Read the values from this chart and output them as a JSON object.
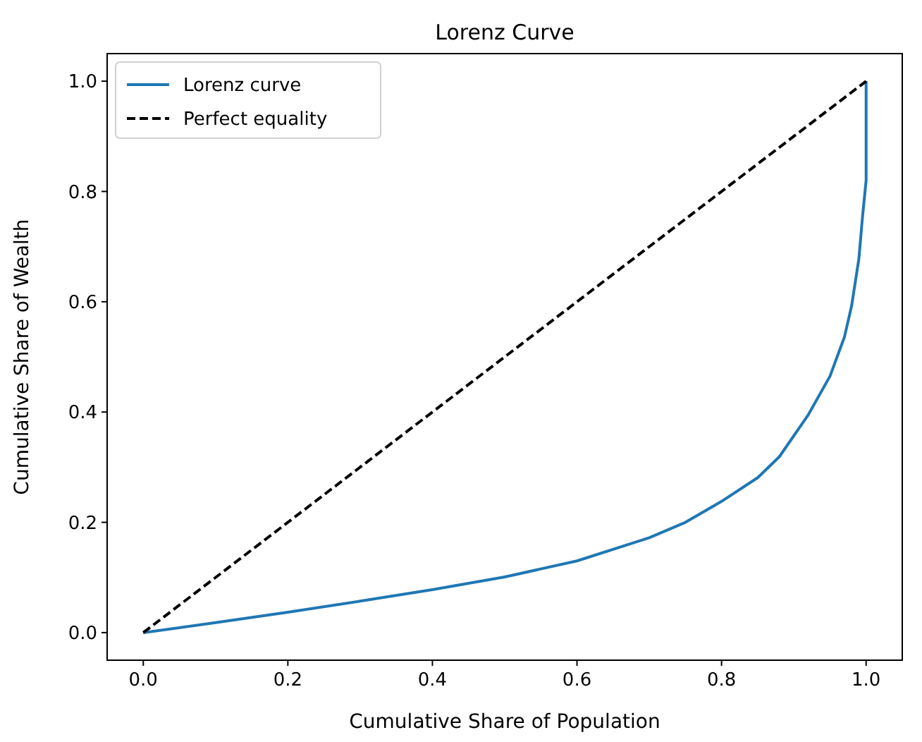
{
  "chart_data": {
    "type": "line",
    "title": "Lorenz Curve",
    "xlabel": "Cumulative Share of Population",
    "ylabel": "Cumulative Share of Wealth",
    "series": [
      {
        "name": "Lorenz curve",
        "color": "#1f77b4",
        "line_style": "solid",
        "x": [
          0,
          0.1,
          0.2,
          0.3,
          0.4,
          0.5,
          0.6,
          0.7,
          0.75,
          0.8,
          0.85,
          0.88,
          0.92,
          0.95,
          0.97,
          0.98,
          0.99,
          0.995,
          1.0,
          1.0
        ],
        "values": [
          0,
          0.018,
          0.037,
          0.057,
          0.078,
          0.101,
          0.13,
          0.172,
          0.2,
          0.238,
          0.281,
          0.319,
          0.395,
          0.465,
          0.536,
          0.593,
          0.678,
          0.754,
          0.82,
          1.0
        ]
      },
      {
        "name": "Perfect equality",
        "color": "#000000",
        "line_style": "dashed",
        "x": [
          0,
          1
        ],
        "values": [
          0,
          1
        ]
      }
    ],
    "xlim": [
      -0.05,
      1.05
    ],
    "ylim": [
      -0.05,
      1.05
    ],
    "xticks": [
      {
        "value": 0,
        "label": "0.0"
      },
      0.2,
      0.4,
      0.6,
      0.8,
      {
        "value": 1,
        "label": "1.0"
      }
    ],
    "yticks": [
      {
        "value": 0,
        "label": "0.0"
      },
      0.2,
      0.4,
      0.6,
      0.8,
      {
        "value": 1,
        "label": "1.0"
      }
    ],
    "grid": false,
    "legend": "top left",
    "marker": "none"
  }
}
